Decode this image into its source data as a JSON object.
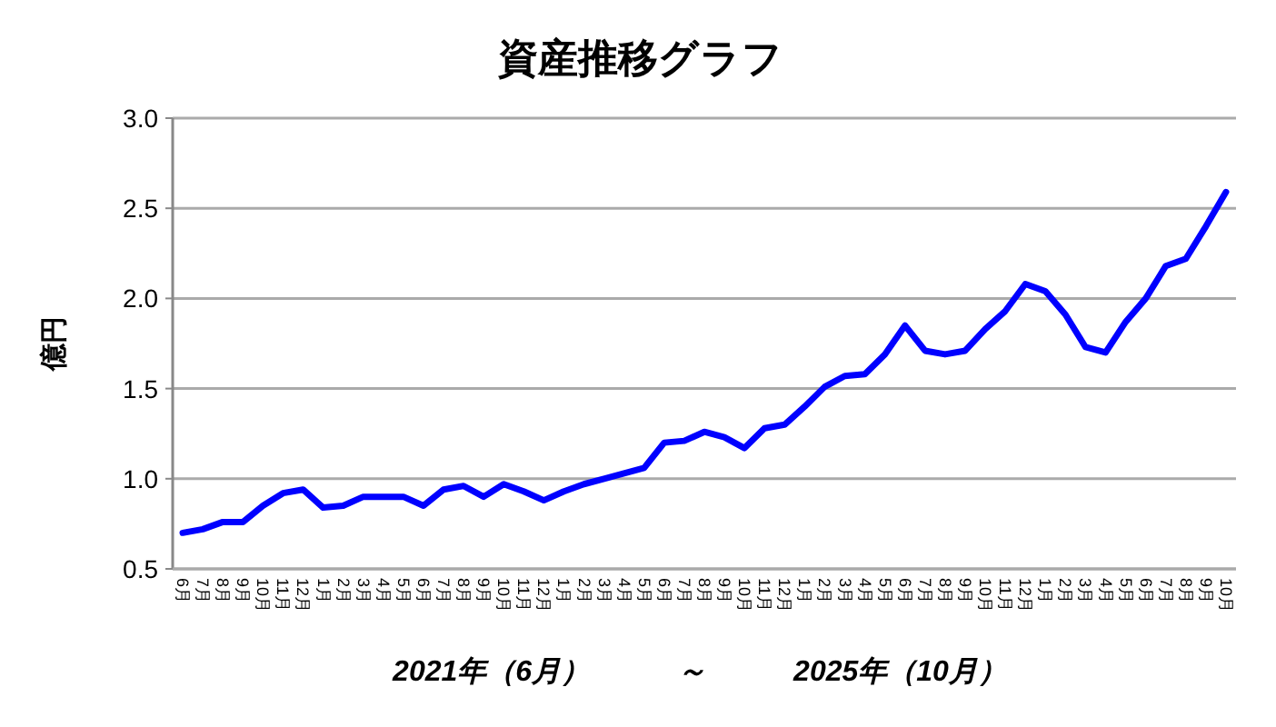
{
  "chart_data": {
    "type": "line",
    "title": "資産推移グラフ",
    "ylabel": "億円",
    "xlabel": "2021年（6月）　　　～　　　2025年（10月）",
    "categories": [
      "6月",
      "7月",
      "8月",
      "9月",
      "10月",
      "11月",
      "12月",
      "1月",
      "2月",
      "3月",
      "4月",
      "5月",
      "6月",
      "7月",
      "8月",
      "9月",
      "10月",
      "11月",
      "12月",
      "1月",
      "2月",
      "3月",
      "4月",
      "5月",
      "6月",
      "7月",
      "8月",
      "9月",
      "10月",
      "11月",
      "12月",
      "1月",
      "2月",
      "3月",
      "4月",
      "5月",
      "6月",
      "7月",
      "8月",
      "9月",
      "10月",
      "11月",
      "12月",
      "1月",
      "2月",
      "3月",
      "4月",
      "5月",
      "6月",
      "7月",
      "8月",
      "9月",
      "10月"
    ],
    "series": [
      {
        "color": "#0000ff",
        "values": [
          0.7,
          0.72,
          0.76,
          0.76,
          0.85,
          0.92,
          0.94,
          0.84,
          0.85,
          0.9,
          0.9,
          0.9,
          0.85,
          0.94,
          0.96,
          0.9,
          0.97,
          0.93,
          0.88,
          0.93,
          0.97,
          1.0,
          1.03,
          1.06,
          1.2,
          1.21,
          1.26,
          1.23,
          1.17,
          1.28,
          1.3,
          1.4,
          1.51,
          1.57,
          1.58,
          1.69,
          1.85,
          1.71,
          1.69,
          1.71,
          1.83,
          1.93,
          2.08,
          2.04,
          1.91,
          1.73,
          1.7,
          1.87,
          2.0,
          2.18,
          2.22,
          2.4,
          2.59
        ]
      }
    ],
    "ylim": [
      0.5,
      3.0
    ],
    "yticks": [
      {
        "value": 0.5,
        "label": "0.5"
      },
      {
        "value": 1.0,
        "label": "1.0"
      },
      {
        "value": 1.5,
        "label": "1.5"
      },
      {
        "value": 2.0,
        "label": "2.0"
      },
      {
        "value": 2.5,
        "label": "2.5"
      },
      {
        "value": 3.0,
        "label": "3.0"
      }
    ],
    "grid": "y",
    "marker": "none",
    "line_style": "solid"
  }
}
